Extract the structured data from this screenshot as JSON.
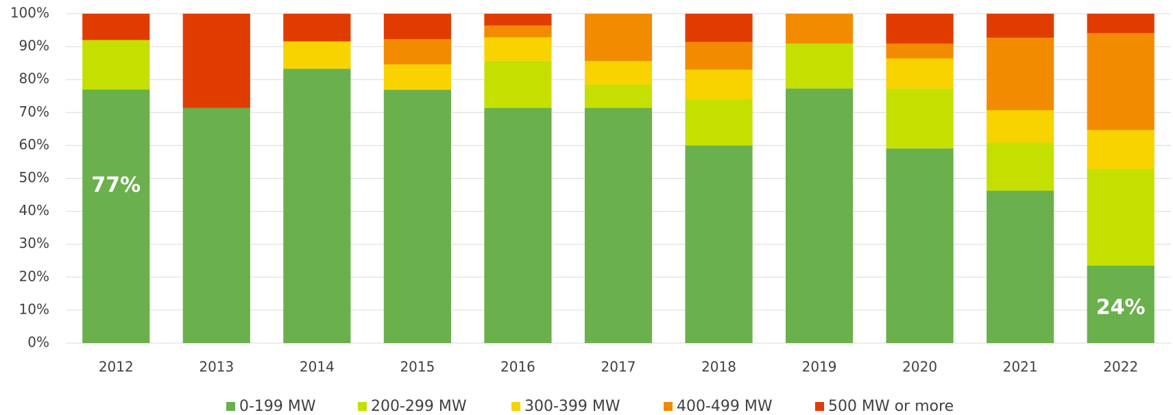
{
  "chart_data": {
    "type": "stacked_bar",
    "categories": [
      "2012",
      "2013",
      "2014",
      "2015",
      "2016",
      "2017",
      "2018",
      "2019",
      "2020",
      "2021",
      "2022"
    ],
    "series": [
      {
        "name": "0-199 MW",
        "color": "#6ab04c",
        "values": [
          77,
          71.4,
          83.3,
          76.9,
          71.4,
          71.4,
          60,
          77.3,
          59.1,
          46.3,
          23.5
        ],
        "value_labels": [
          "77%",
          null,
          null,
          null,
          null,
          null,
          null,
          null,
          null,
          null,
          "24%"
        ]
      },
      {
        "name": "200-299 MW",
        "color": "#c5e000",
        "values": [
          15,
          0,
          0,
          0,
          14.3,
          7.1,
          14,
          13.6,
          18.2,
          14.6,
          29.4
        ]
      },
      {
        "name": "300-399 MW",
        "color": "#f8d300",
        "values": [
          0,
          0,
          8.3,
          7.7,
          7.1,
          7.1,
          9,
          0,
          9.1,
          9.8,
          11.8
        ]
      },
      {
        "name": "400-499 MW",
        "color": "#f38b00",
        "values": [
          0,
          0,
          0,
          7.7,
          3.6,
          14.4,
          8.4,
          9.1,
          4.5,
          22,
          29.4
        ]
      },
      {
        "name": "500 MW or more",
        "color": "#e03c00",
        "values": [
          8,
          28.6,
          8.4,
          7.7,
          3.6,
          0,
          8.6,
          0,
          9.1,
          7.3,
          5.9
        ]
      }
    ],
    "ylim": [
      0,
      100
    ],
    "yticks": [
      {
        "value": 0,
        "label": "0%"
      },
      {
        "value": 10,
        "label": "10%"
      },
      {
        "value": 20,
        "label": "20%"
      },
      {
        "value": 30,
        "label": "30%"
      },
      {
        "value": 40,
        "label": "40%"
      },
      {
        "value": 50,
        "label": "50%"
      },
      {
        "value": 60,
        "label": "60%"
      },
      {
        "value": 70,
        "label": "70%"
      },
      {
        "value": 80,
        "label": "80%"
      },
      {
        "value": 90,
        "label": "90%"
      },
      {
        "value": 100,
        "label": "100%"
      }
    ],
    "grid": true,
    "legend": "bottom"
  }
}
